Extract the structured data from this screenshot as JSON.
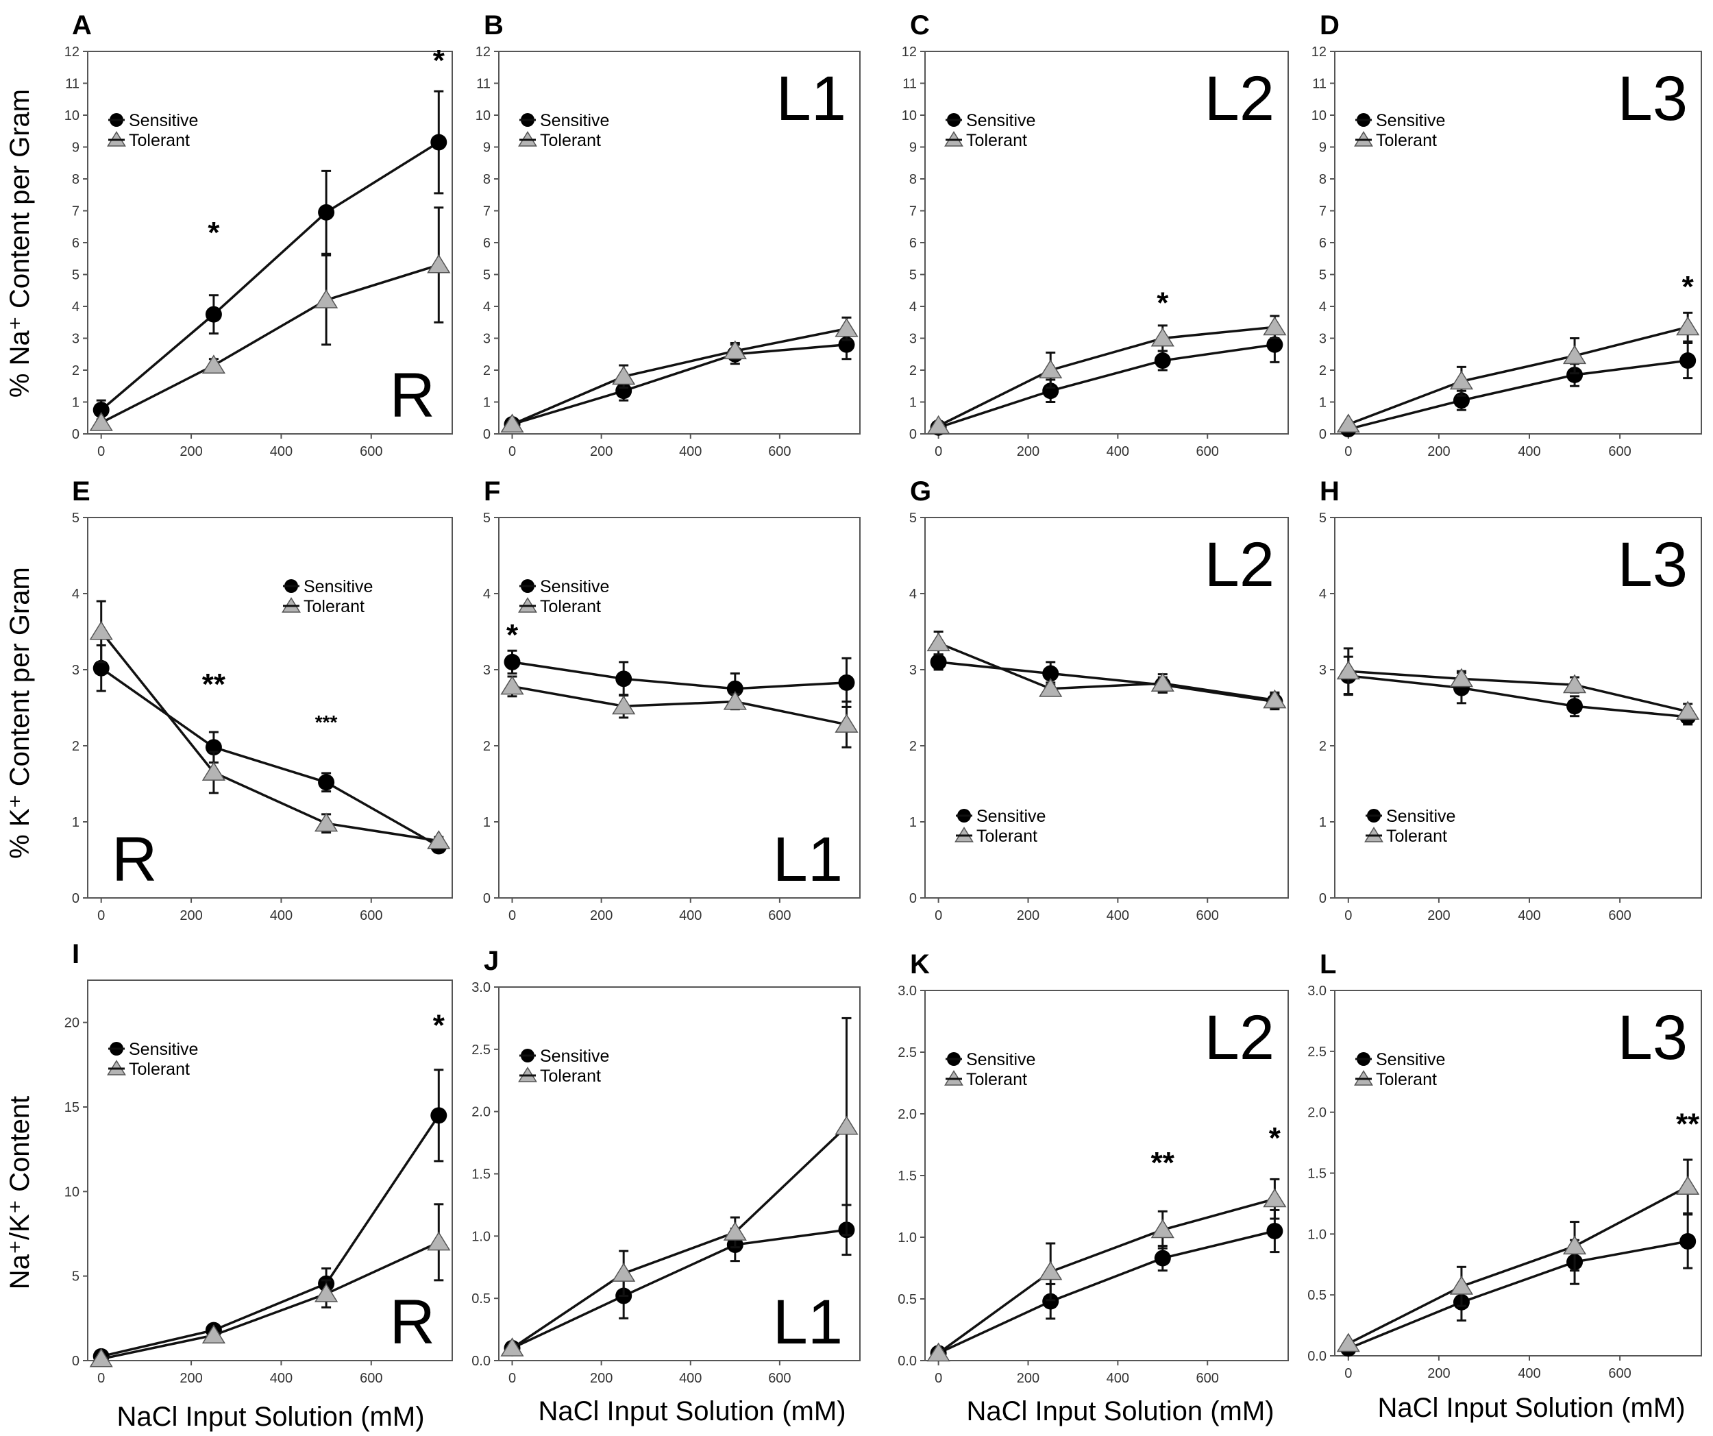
{
  "figure": {
    "row_ylabels": [
      "% Na⁺ Content per Gram",
      "% K⁺ Content per Gram",
      "Na⁺/K⁺ Content"
    ],
    "bottom_xlabel": "NaCl Input Solution (mM)"
  },
  "colors": {
    "sensitive": "#000000",
    "tolerant": "#b4b4b4",
    "line": "#111111",
    "frame": "#555555"
  },
  "chart_data": [
    {
      "letter": "A",
      "tissue": "R",
      "type": "line",
      "ylim": [
        0,
        12
      ],
      "yticks": [
        0,
        1,
        2,
        3,
        4,
        5,
        6,
        7,
        8,
        9,
        10,
        11,
        12
      ],
      "x": [
        0,
        250,
        500,
        750
      ],
      "xticks": [
        0,
        200,
        400,
        600
      ],
      "legend": "top-left",
      "tissue_pos": "bottom-right",
      "series": [
        {
          "name": "Sensitive",
          "values": [
            0.75,
            3.75,
            6.95,
            9.15
          ],
          "err": [
            0.3,
            0.6,
            1.3,
            1.6
          ]
        },
        {
          "name": "Tolerant",
          "values": [
            0.35,
            2.15,
            4.2,
            5.3
          ],
          "err": [
            0.1,
            0.2,
            1.4,
            1.8
          ]
        }
      ],
      "annotations": [
        {
          "x": 250,
          "y": 6.3,
          "text": "*"
        },
        {
          "x": 750,
          "y": 11.7,
          "text": "*"
        }
      ]
    },
    {
      "letter": "B",
      "tissue": "L1",
      "type": "line",
      "ylim": [
        0,
        12
      ],
      "yticks": [
        0,
        1,
        2,
        3,
        4,
        5,
        6,
        7,
        8,
        9,
        10,
        11,
        12
      ],
      "x": [
        0,
        250,
        500,
        750
      ],
      "xticks": [
        0,
        200,
        400,
        600
      ],
      "legend": "top-left",
      "tissue_pos": "top-right",
      "series": [
        {
          "name": "Sensitive",
          "values": [
            0.3,
            1.35,
            2.5,
            2.8
          ],
          "err": [
            0.05,
            0.3,
            0.3,
            0.45
          ]
        },
        {
          "name": "Tolerant",
          "values": [
            0.3,
            1.8,
            2.6,
            3.3
          ],
          "err": [
            0.05,
            0.35,
            0.25,
            0.35
          ]
        }
      ],
      "annotations": []
    },
    {
      "letter": "C",
      "tissue": "L2",
      "type": "line",
      "ylim": [
        0,
        12
      ],
      "yticks": [
        0,
        1,
        2,
        3,
        4,
        5,
        6,
        7,
        8,
        9,
        10,
        11,
        12
      ],
      "x": [
        0,
        250,
        500,
        750
      ],
      "xticks": [
        0,
        200,
        400,
        600
      ],
      "legend": "top-left",
      "tissue_pos": "top-right",
      "series": [
        {
          "name": "Sensitive",
          "values": [
            0.2,
            1.35,
            2.3,
            2.8
          ],
          "err": [
            0.05,
            0.35,
            0.3,
            0.55
          ]
        },
        {
          "name": "Tolerant",
          "values": [
            0.25,
            2.0,
            3.0,
            3.35
          ],
          "err": [
            0.05,
            0.55,
            0.4,
            0.35
          ]
        }
      ],
      "annotations": [
        {
          "x": 500,
          "y": 4.1,
          "text": "*"
        }
      ]
    },
    {
      "letter": "D",
      "tissue": "L3",
      "type": "line",
      "ylim": [
        0,
        12
      ],
      "yticks": [
        0,
        1,
        2,
        3,
        4,
        5,
        6,
        7,
        8,
        9,
        10,
        11,
        12
      ],
      "x": [
        0,
        250,
        500,
        750
      ],
      "xticks": [
        0,
        200,
        400,
        600
      ],
      "legend": "top-left",
      "tissue_pos": "top-right",
      "series": [
        {
          "name": "Sensitive",
          "values": [
            0.15,
            1.05,
            1.85,
            2.3
          ],
          "err": [
            0.05,
            0.3,
            0.35,
            0.55
          ]
        },
        {
          "name": "Tolerant",
          "values": [
            0.3,
            1.65,
            2.45,
            3.35
          ],
          "err": [
            0.05,
            0.45,
            0.55,
            0.45
          ]
        }
      ],
      "annotations": [
        {
          "x": 750,
          "y": 4.6,
          "text": "*"
        }
      ]
    },
    {
      "letter": "E",
      "tissue": "R",
      "type": "line",
      "ylim": [
        0,
        5
      ],
      "yticks": [
        0,
        1,
        2,
        3,
        4,
        5
      ],
      "x": [
        0,
        250,
        500,
        750
      ],
      "xticks": [
        0,
        200,
        400,
        600
      ],
      "legend": "top-right",
      "tissue_pos": "bottom-left",
      "series": [
        {
          "name": "Sensitive",
          "values": [
            3.02,
            1.98,
            1.52,
            0.68
          ],
          "err": [
            0.3,
            0.2,
            0.12,
            0.08
          ]
        },
        {
          "name": "Tolerant",
          "values": [
            3.5,
            1.65,
            0.98,
            0.75
          ],
          "err": [
            0.4,
            0.27,
            0.12,
            0.05
          ]
        }
      ],
      "annotations": [
        {
          "x": 250,
          "y": 2.8,
          "text": "**"
        },
        {
          "x": 500,
          "y": 2.35,
          "text": "***"
        }
      ]
    },
    {
      "letter": "F",
      "tissue": "L1",
      "type": "line",
      "ylim": [
        0,
        5
      ],
      "yticks": [
        0,
        1,
        2,
        3,
        4,
        5
      ],
      "x": [
        0,
        250,
        500,
        750
      ],
      "xticks": [
        0,
        200,
        400,
        600
      ],
      "legend": "top-left",
      "tissue_pos": "bottom-right",
      "series": [
        {
          "name": "Sensitive",
          "values": [
            3.1,
            2.88,
            2.75,
            2.83
          ],
          "err": [
            0.15,
            0.22,
            0.2,
            0.32
          ]
        },
        {
          "name": "Tolerant",
          "values": [
            2.78,
            2.52,
            2.58,
            2.28
          ],
          "err": [
            0.13,
            0.15,
            0.1,
            0.3
          ]
        }
      ],
      "annotations": [
        {
          "x": 0,
          "y": 3.45,
          "text": "*"
        }
      ]
    },
    {
      "letter": "G",
      "tissue": "L2",
      "type": "line",
      "ylim": [
        0,
        5
      ],
      "yticks": [
        0,
        1,
        2,
        3,
        4,
        5
      ],
      "x": [
        0,
        250,
        500,
        750
      ],
      "xticks": [
        0,
        200,
        400,
        600
      ],
      "legend": "bottom-left",
      "tissue_pos": "top-right",
      "series": [
        {
          "name": "Sensitive",
          "values": [
            3.1,
            2.95,
            2.8,
            2.58
          ],
          "err": [
            0.1,
            0.15,
            0.1,
            0.1
          ]
        },
        {
          "name": "Tolerant",
          "values": [
            3.35,
            2.75,
            2.82,
            2.6
          ],
          "err": [
            0.15,
            0.08,
            0.12,
            0.1
          ]
        }
      ],
      "annotations": []
    },
    {
      "letter": "H",
      "tissue": "L3",
      "type": "line",
      "ylim": [
        0,
        5
      ],
      "yticks": [
        0,
        1,
        2,
        3,
        4,
        5
      ],
      "x": [
        0,
        250,
        500,
        750
      ],
      "xticks": [
        0,
        200,
        400,
        600
      ],
      "legend": "bottom-left",
      "tissue_pos": "top-right",
      "series": [
        {
          "name": "Sensitive",
          "values": [
            2.92,
            2.76,
            2.52,
            2.38
          ],
          "err": [
            0.25,
            0.2,
            0.13,
            0.1
          ]
        },
        {
          "name": "Tolerant",
          "values": [
            2.98,
            2.88,
            2.8,
            2.45
          ],
          "err": [
            0.3,
            0.1,
            0.1,
            0.1
          ]
        }
      ],
      "annotations": []
    },
    {
      "letter": "I",
      "tissue": "R",
      "type": "line",
      "ylim": [
        0,
        22.5
      ],
      "yticks": [
        0,
        5,
        10,
        15,
        20
      ],
      "x": [
        0,
        250,
        500,
        750
      ],
      "xticks": [
        0,
        200,
        400,
        600
      ],
      "legend": "top-left",
      "tissue_pos": "bottom-right",
      "series": [
        {
          "name": "Sensitive",
          "values": [
            0.25,
            1.8,
            4.55,
            14.5
          ],
          "err": [
            0.1,
            0.2,
            0.9,
            2.7
          ]
        },
        {
          "name": "Tolerant",
          "values": [
            0.1,
            1.5,
            3.95,
            7.0
          ],
          "err": [
            0.05,
            0.15,
            0.8,
            2.25
          ]
        }
      ],
      "annotations": [
        {
          "x": 750,
          "y": 19.8,
          "text": "*"
        }
      ]
    },
    {
      "letter": "J",
      "tissue": "L1",
      "type": "line",
      "ylim": [
        0,
        3
      ],
      "yticks": [
        0,
        0.5,
        1,
        1.5,
        2,
        2.5,
        3
      ],
      "ytick_labels": [
        "0.0",
        "0.5",
        "1.0",
        "1.5",
        "2.0",
        "2.5",
        "3.0"
      ],
      "x": [
        0,
        250,
        500,
        750
      ],
      "xticks": [
        0,
        200,
        400,
        600
      ],
      "legend": "top-left",
      "tissue_pos": "bottom-right",
      "series": [
        {
          "name": "Sensitive",
          "values": [
            0.1,
            0.52,
            0.93,
            1.05
          ],
          "err": [
            0.02,
            0.18,
            0.13,
            0.2
          ]
        },
        {
          "name": "Tolerant",
          "values": [
            0.1,
            0.7,
            1.03,
            1.88
          ],
          "err": [
            0.02,
            0.18,
            0.12,
            0.87
          ]
        }
      ],
      "annotations": []
    },
    {
      "letter": "K",
      "tissue": "L2",
      "type": "line",
      "ylim": [
        0,
        3
      ],
      "yticks": [
        0,
        0.5,
        1,
        1.5,
        2,
        2.5,
        3
      ],
      "ytick_labels": [
        "0.0",
        "0.5",
        "1.0",
        "1.5",
        "2.0",
        "2.5",
        "3.0"
      ],
      "x": [
        0,
        250,
        500,
        750
      ],
      "xticks": [
        0,
        200,
        400,
        600
      ],
      "legend": "top-left",
      "tissue_pos": "top-right",
      "series": [
        {
          "name": "Sensitive",
          "values": [
            0.06,
            0.48,
            0.83,
            1.05
          ],
          "err": [
            0.02,
            0.14,
            0.1,
            0.17
          ]
        },
        {
          "name": "Tolerant",
          "values": [
            0.06,
            0.72,
            1.06,
            1.31
          ],
          "err": [
            0.02,
            0.23,
            0.15,
            0.16
          ]
        }
      ],
      "annotations": [
        {
          "x": 500,
          "y": 1.6,
          "text": "**"
        },
        {
          "x": 750,
          "y": 1.8,
          "text": "*"
        }
      ]
    },
    {
      "letter": "L",
      "tissue": "L3",
      "type": "line",
      "ylim": [
        0,
        3
      ],
      "yticks": [
        0,
        0.5,
        1,
        1.5,
        2,
        2.5,
        3
      ],
      "ytick_labels": [
        "0.0",
        "0.5",
        "1.0",
        "1.5",
        "2.0",
        "2.5",
        "3.0"
      ],
      "x": [
        0,
        250,
        500,
        750
      ],
      "xticks": [
        0,
        200,
        400,
        600
      ],
      "legend": "top-left",
      "tissue_pos": "top-right",
      "series": [
        {
          "name": "Sensitive",
          "values": [
            0.06,
            0.44,
            0.77,
            0.94
          ],
          "err": [
            0.02,
            0.15,
            0.18,
            0.22
          ]
        },
        {
          "name": "Tolerant",
          "values": [
            0.1,
            0.57,
            0.9,
            1.39
          ],
          "err": [
            0.02,
            0.16,
            0.2,
            0.22
          ]
        }
      ],
      "annotations": [
        {
          "x": 750,
          "y": 1.9,
          "text": "**"
        }
      ]
    }
  ]
}
